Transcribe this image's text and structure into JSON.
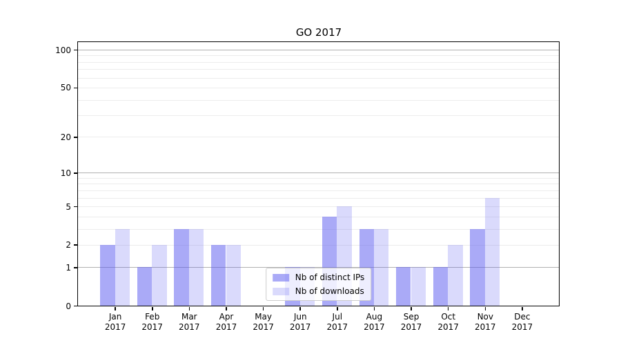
{
  "chart_data": {
    "type": "bar",
    "title": "GO 2017",
    "categories": [
      "Jan",
      "Feb",
      "Mar",
      "Apr",
      "May",
      "Jun",
      "Jul",
      "Aug",
      "Sep",
      "Oct",
      "Nov",
      "Dec"
    ],
    "category_year": "2017",
    "series": [
      {
        "name": "Nb of distinct IPs",
        "color": "rgba(85,85,240,0.5)",
        "solid_color": "#aaaaf7",
        "values": [
          2,
          1,
          3,
          2,
          0,
          1,
          4,
          3,
          1,
          1,
          3,
          0
        ]
      },
      {
        "name": "Nb of downloads",
        "color": "rgba(85,85,240,0.22)",
        "solid_color": "#d9d9fb",
        "values": [
          3,
          2,
          3,
          2,
          0,
          1,
          5,
          3,
          1,
          2,
          6,
          0
        ]
      }
    ],
    "xlabel": "",
    "ylabel": "",
    "yscale": "log1p",
    "ylim": [
      0,
      115
    ],
    "yticks": [
      0,
      1,
      2,
      5,
      10,
      20,
      50,
      100
    ],
    "major_grid_values": [
      1,
      10,
      100
    ],
    "minor_grid_values": [
      2,
      3,
      4,
      5,
      6,
      7,
      8,
      9,
      20,
      30,
      40,
      50,
      60,
      70,
      80,
      90
    ],
    "grid": true,
    "legend_position": "lower center"
  },
  "colors": {
    "background": "#ffffff",
    "spine": "#000000",
    "text": "#000000",
    "major_grid": "#b0b0b0",
    "minor_grid": "#ececec",
    "legend_border": "#cccccc"
  }
}
